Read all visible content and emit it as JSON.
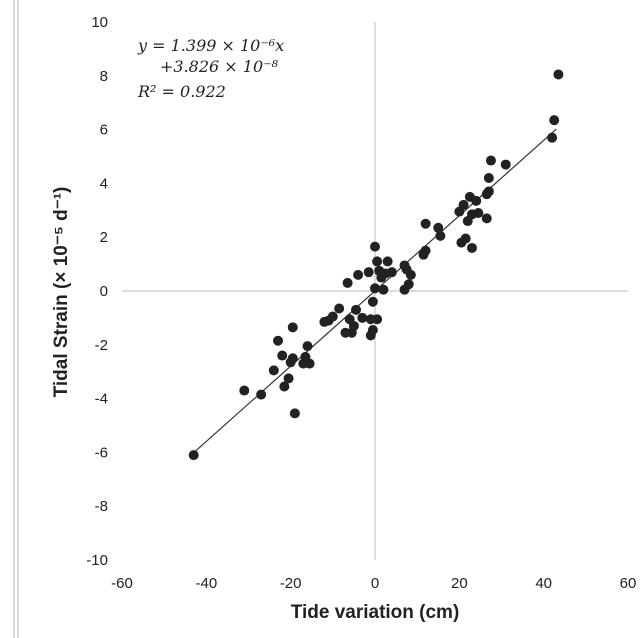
{
  "chart_data": {
    "type": "scatter",
    "xlabel": "Tide variation (cm)",
    "ylabel": "Tidal Strain (× 10⁻⁵ d⁻¹)",
    "xlim": [
      -60,
      60
    ],
    "ylim": [
      -10,
      10
    ],
    "xticks": [
      -60,
      -40,
      -20,
      0,
      20,
      40,
      60
    ],
    "yticks": [
      -10,
      -8,
      -6,
      -4,
      -2,
      0,
      2,
      4,
      6,
      8,
      10
    ],
    "grid": false,
    "axes_through_origin": true,
    "annotation": {
      "line1": "y = 1.399 × 10⁻⁶x",
      "line2": "+3.826 × 10⁻⁸",
      "line3": "R² = 0.922"
    },
    "fit": {
      "slope": 0.1399,
      "intercept": 0.0038,
      "x_range": [
        -43,
        43
      ]
    },
    "marker_color": "#222222",
    "points": [
      [
        -43,
        -6.1
      ],
      [
        -31,
        -3.7
      ],
      [
        -27,
        -3.85
      ],
      [
        -24,
        -2.95
      ],
      [
        -23,
        -1.85
      ],
      [
        -22,
        -2.4
      ],
      [
        -21.5,
        -3.55
      ],
      [
        -20.5,
        -3.25
      ],
      [
        -20,
        -2.65
      ],
      [
        -19.5,
        -1.35
      ],
      [
        -19.5,
        -2.5
      ],
      [
        -19,
        -4.55
      ],
      [
        -17,
        -2.7
      ],
      [
        -16.5,
        -2.45
      ],
      [
        -16,
        -2.05
      ],
      [
        -15.5,
        -2.7
      ],
      [
        -12,
        -1.15
      ],
      [
        -11,
        -1.1
      ],
      [
        -10,
        -0.95
      ],
      [
        -8.5,
        -0.65
      ],
      [
        -7,
        -1.55
      ],
      [
        -6.5,
        0.3
      ],
      [
        -6,
        -1.05
      ],
      [
        -5.5,
        -1.55
      ],
      [
        -5,
        -1.3
      ],
      [
        -4.5,
        -0.7
      ],
      [
        -4,
        0.6
      ],
      [
        -3,
        -1.0
      ],
      [
        -1.5,
        0.7
      ],
      [
        -1,
        -1.05
      ],
      [
        -1,
        -1.65
      ],
      [
        -0.5,
        -1.45
      ],
      [
        -0.5,
        -0.4
      ],
      [
        0,
        0.1
      ],
      [
        0,
        1.65
      ],
      [
        0.5,
        1.1
      ],
      [
        0.5,
        -1.05
      ],
      [
        1,
        0.75
      ],
      [
        1.5,
        0.5
      ],
      [
        2,
        0.05
      ],
      [
        2.5,
        0.65
      ],
      [
        3,
        1.1
      ],
      [
        4,
        0.7
      ],
      [
        7,
        0.05
      ],
      [
        7,
        0.95
      ],
      [
        7.5,
        0.8
      ],
      [
        8,
        0.25
      ],
      [
        8.5,
        0.6
      ],
      [
        11.5,
        1.35
      ],
      [
        12,
        1.5
      ],
      [
        12,
        2.5
      ],
      [
        15,
        2.35
      ],
      [
        15.5,
        2.05
      ],
      [
        20,
        2.95
      ],
      [
        20.5,
        1.8
      ],
      [
        21,
        3.2
      ],
      [
        21.5,
        1.95
      ],
      [
        22,
        2.6
      ],
      [
        22.5,
        3.5
      ],
      [
        23,
        2.85
      ],
      [
        23,
        1.6
      ],
      [
        24,
        3.35
      ],
      [
        24.5,
        2.9
      ],
      [
        26.5,
        2.7
      ],
      [
        26.5,
        3.6
      ],
      [
        27,
        3.7
      ],
      [
        27,
        4.2
      ],
      [
        27.5,
        4.85
      ],
      [
        31,
        4.7
      ],
      [
        42,
        5.7
      ],
      [
        42.5,
        6.35
      ],
      [
        43.5,
        8.05
      ]
    ]
  }
}
